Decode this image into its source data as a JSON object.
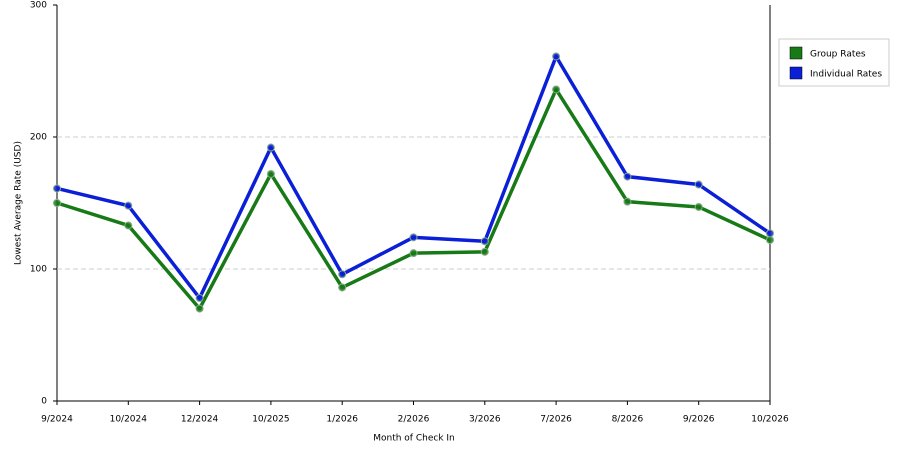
{
  "chart_data": {
    "type": "line",
    "x_label": "Month of Check In",
    "y_label": "Lowest Average Rate (USD)",
    "categories": [
      "9/2024",
      "10/2024",
      "12/2024",
      "10/2025",
      "1/2026",
      "2/2026",
      "3/2026",
      "7/2026",
      "8/2026",
      "9/2026",
      "10/2026"
    ],
    "series": [
      {
        "name": "Group Rates",
        "color": "#177a17",
        "values": [
          150,
          133,
          70,
          172,
          86,
          112,
          113,
          236,
          151,
          147,
          122
        ]
      },
      {
        "name": "Individual Rates",
        "color": "#0b1fd6",
        "values": [
          161,
          148,
          78,
          192,
          96,
          124,
          121,
          261,
          170,
          164,
          127
        ]
      }
    ],
    "ylim": [
      0,
      300
    ],
    "yticks": [
      0,
      100,
      200,
      300
    ],
    "grid": true,
    "legend": "right"
  }
}
